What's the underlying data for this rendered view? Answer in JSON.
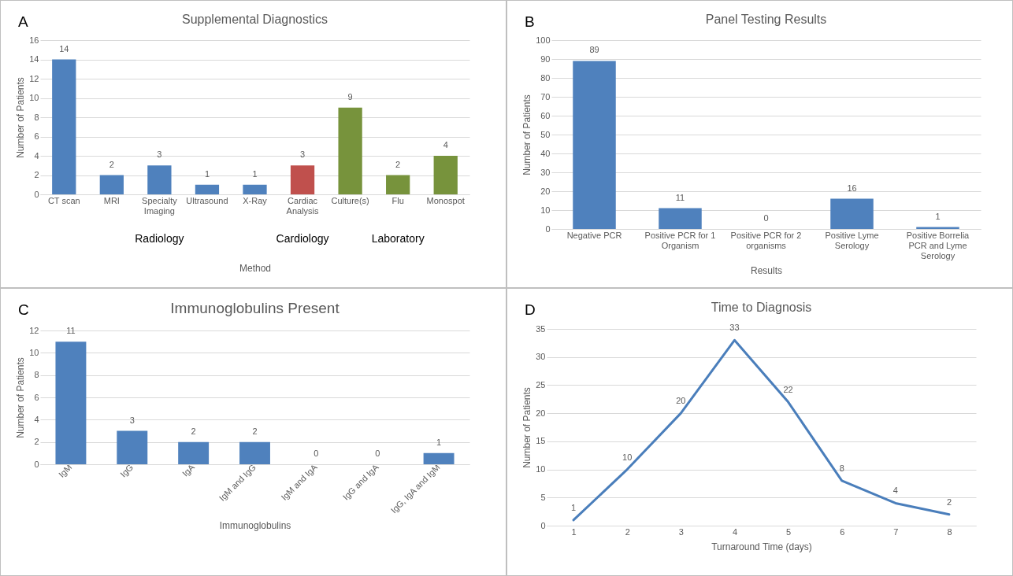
{
  "chart_data": [
    {
      "type": "bar",
      "title": "Supplemental Diagnostics",
      "xlabel": "Method",
      "ylabel": "Number of Patients",
      "categories": [
        "CT scan",
        "MRI",
        "Specialty Imaging",
        "Ultrasound",
        "X-Ray",
        "Cardiac Analysis",
        "Culture(s)",
        "Flu",
        "Monospot"
      ],
      "values": [
        14,
        2,
        3,
        1,
        1,
        3,
        9,
        2,
        4
      ],
      "colors": [
        "#4f81bd",
        "#4f81bd",
        "#4f81bd",
        "#4f81bd",
        "#4f81bd",
        "#c0504d",
        "#77933c",
        "#77933c",
        "#77933c"
      ],
      "ylim": [
        0,
        16
      ],
      "yticks": [
        0,
        2,
        4,
        6,
        8,
        10,
        12,
        14,
        16
      ],
      "grid": "y",
      "data_labels": true,
      "annotations": [
        "A",
        "Radiology",
        "Cardiology",
        "Laboratory"
      ]
    },
    {
      "type": "bar",
      "title": "Panel Testing Results",
      "xlabel": "Results",
      "ylabel": "Number of Patients",
      "categories": [
        "Negative PCR",
        "Positive PCR for 1 Organism",
        "Positive PCR for 2 organisms",
        "Positive Lyme Serology",
        "Positive Borrelia PCR and Lyme Serology"
      ],
      "values": [
        89,
        11,
        0,
        16,
        1
      ],
      "color": "#4f81bd",
      "ylim": [
        0,
        100
      ],
      "yticks": [
        0,
        10,
        20,
        30,
        40,
        50,
        60,
        70,
        80,
        90,
        100
      ],
      "grid": "y",
      "data_labels": true,
      "annotations": [
        "B"
      ]
    },
    {
      "type": "bar",
      "title": "Immunoglobulins Present",
      "xlabel": "Immunoglobulins",
      "ylabel": "Number of Patients",
      "categories": [
        "IgM",
        "IgG",
        "IgA",
        "IgM and IgG",
        "IgM and IgA",
        "IgG and IgA",
        "IgG, IgA and IgM"
      ],
      "values": [
        11,
        3,
        2,
        2,
        0,
        0,
        1
      ],
      "color": "#4f81bd",
      "ylim": [
        0,
        12
      ],
      "yticks": [
        0,
        2,
        4,
        6,
        8,
        10,
        12
      ],
      "grid": "y",
      "data_labels": true,
      "annotations": [
        "C"
      ]
    },
    {
      "type": "line",
      "title": "Time to Diagnosis",
      "xlabel": "Turnaround Time (days)",
      "ylabel": "Number of Patients",
      "categories": [
        "1",
        "2",
        "3",
        "4",
        "5",
        "6",
        "7",
        "8"
      ],
      "values": [
        1,
        10,
        20,
        33,
        22,
        8,
        4,
        2
      ],
      "color": "#4a7ebb",
      "ylim": [
        0,
        35
      ],
      "yticks": [
        0,
        5,
        10,
        15,
        20,
        25,
        30,
        35
      ],
      "grid": "y",
      "data_labels": true,
      "annotations": [
        "D"
      ]
    }
  ]
}
